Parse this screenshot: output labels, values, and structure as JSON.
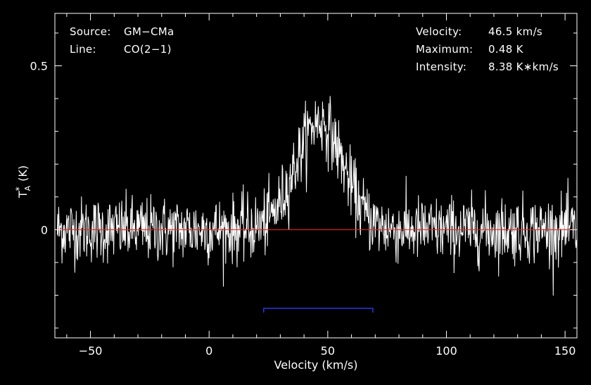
{
  "chart_data": {
    "type": "line",
    "xlabel": "Velocity (km/s)",
    "ylabel": "T",
    "ylabel_sup": "*",
    "ylabel_sub": "A",
    "ylabel_unit": "(K)",
    "xlim": [
      -65,
      155
    ],
    "ylim": [
      -0.33,
      0.66
    ],
    "xticks": [
      -50,
      0,
      50,
      100,
      150
    ],
    "xtick_labels": [
      "−50",
      "0",
      "50",
      "100",
      "150"
    ],
    "yticks": [
      0,
      0.5
    ],
    "ytick_labels": [
      "0",
      "0.5"
    ],
    "baseline": 0,
    "integration_window": {
      "x": [
        23,
        69
      ],
      "y": -0.24
    },
    "series": [
      {
        "noise_rms": 0.05,
        "peak_velocity": 46.5,
        "peak_height": 0.33,
        "profile_width_sigma": 10,
        "x_range": [
          -64,
          155
        ],
        "x_step": 0.2
      }
    ]
  },
  "info": {
    "left": [
      {
        "label": "Source:",
        "value": "GM−CMa"
      },
      {
        "label": "Line:",
        "value": "CO(2−1)"
      }
    ],
    "right": [
      {
        "label": "Velocity:",
        "value": "46.5 km/s"
      },
      {
        "label": "Maximum:",
        "value": "0.48 K"
      },
      {
        "label": "Intensity:",
        "value": "8.38 K∗km/s"
      }
    ]
  },
  "colors": {
    "background": "#000000",
    "frame": "#ffffff",
    "spectrum": "#ffffff",
    "baseline": "#e8241c",
    "window": "#2a35e8"
  }
}
